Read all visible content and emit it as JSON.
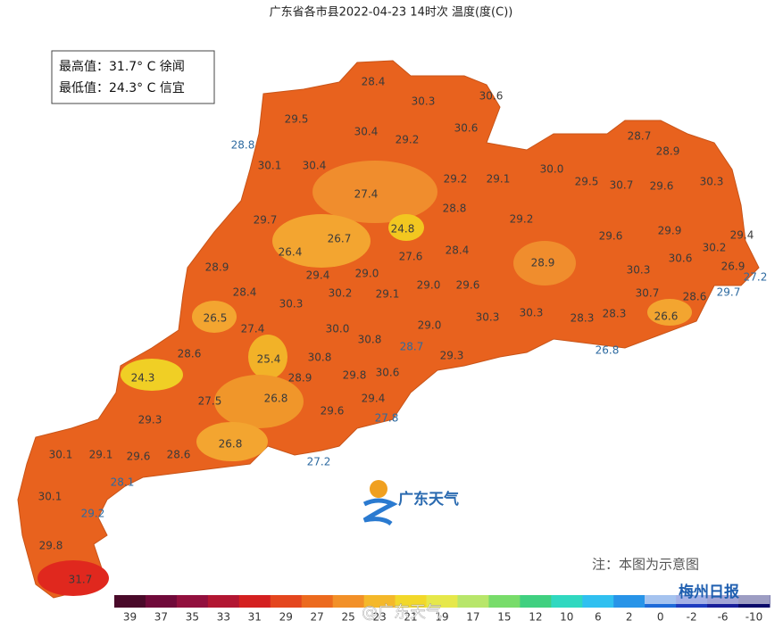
{
  "header": {
    "title": "广东省各市县2022-04-23 14时次 温度(度(C))"
  },
  "info_box": {
    "max": "最高值：31.7° C 徐闻",
    "min": "最低值：24.3° C 信宜"
  },
  "map_labels": [
    "28.4",
    "30.3",
    "30.6",
    "29.5",
    "30.4",
    "29.2",
    "30.6",
    "28.8",
    "30.1",
    "30.4",
    "27.4",
    "29.2",
    "29.1",
    "30.0",
    "29.5",
    "30.7",
    "29.6",
    "30.3",
    "28.7",
    "28.9",
    "29.7",
    "28.8",
    "29.2",
    "24.8",
    "26.4",
    "26.7",
    "27.6",
    "28.4",
    "29.6",
    "29.9",
    "29.4",
    "30.2",
    "28.9",
    "29.4",
    "29.0",
    "28.9",
    "30.3",
    "30.6",
    "26.9",
    "27.2",
    "28.4",
    "30.2",
    "29.1",
    "29.0",
    "29.6",
    "30.7",
    "28.6",
    "29.7",
    "30.3",
    "26.5",
    "30.3",
    "30.3",
    "28.3",
    "28.3",
    "26.6",
    "27.4",
    "30.0",
    "29.0",
    "30.8",
    "28.7",
    "26.8",
    "28.6",
    "25.4",
    "30.8",
    "29.3",
    "24.3",
    "28.9",
    "29.8",
    "30.6",
    "27.5",
    "26.8",
    "29.4",
    "29.6",
    "27.8",
    "29.3",
    "26.8",
    "28.6",
    "27.2",
    "30.1",
    "29.1",
    "29.6",
    "28.1",
    "30.1",
    "29.2",
    "29.8",
    "31.7"
  ],
  "logo": "广东天气",
  "note": "注：本图为示意图",
  "watermarks": [
    "@广东天气",
    "梅州日报"
  ],
  "legend": {
    "labels": [
      "39",
      "37",
      "35",
      "33",
      "31",
      "29",
      "27",
      "25",
      "23",
      "21",
      "19",
      "17",
      "15",
      "12",
      "10",
      "6",
      "2",
      "0",
      "-2",
      "-6",
      "-10"
    ],
    "colors": [
      "#4a0a2a",
      "#700a3a",
      "#92103e",
      "#b21632",
      "#d42020",
      "#e4461e",
      "#ec6a1e",
      "#f29028",
      "#f4b82a",
      "#f2d82a",
      "#e6e84a",
      "#b8e66a",
      "#78dc6a",
      "#40d080",
      "#30d8c0",
      "#30c0f0",
      "#2894e8",
      "#1e6ad8",
      "#1e3cc0",
      "#181e9a",
      "#0a0a6a"
    ]
  }
}
